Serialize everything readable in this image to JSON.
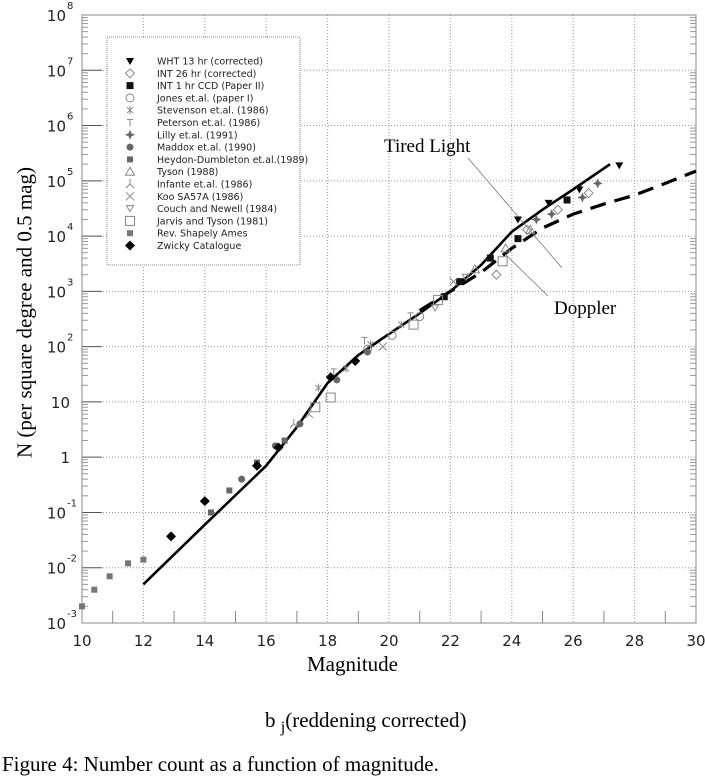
{
  "chart_data": {
    "type": "scatter",
    "title": "",
    "xlabel": "Magnitude",
    "xlabel2_main": "b",
    "xlabel2_sub": "j",
    "xlabel2_rest": "(reddening corrected)",
    "ylabel": "N (per square degree and 0.5 mag)",
    "xlim": [
      10,
      30
    ],
    "ylim": [
      0.001,
      100000000
    ],
    "yscale": "log",
    "grid": true,
    "legend_position": "top-left",
    "x_ticks": [
      "10",
      "12",
      "14",
      "16",
      "18",
      "20",
      "22",
      "24",
      "26",
      "28",
      "30"
    ],
    "y_ticks": [
      {
        "base": "10",
        "exp": "-3"
      },
      {
        "base": "10",
        "exp": "-2"
      },
      {
        "base": "10",
        "exp": "-1"
      },
      {
        "base": "1",
        "exp": ""
      },
      {
        "base": "10",
        "exp": ""
      },
      {
        "base": "10",
        "exp": "2"
      },
      {
        "base": "10",
        "exp": "3"
      },
      {
        "base": "10",
        "exp": "4"
      },
      {
        "base": "10",
        "exp": "5"
      },
      {
        "base": "10",
        "exp": "6"
      },
      {
        "base": "10",
        "exp": "7"
      },
      {
        "base": "10",
        "exp": "8"
      }
    ],
    "curves": [
      {
        "name": "Tired Light",
        "style": "solid",
        "x": [
          12,
          14,
          16,
          17,
          18,
          19,
          20,
          21,
          22,
          23,
          24,
          25,
          26,
          27.2
        ],
        "y": [
          0.005,
          0.06,
          0.7,
          3.5,
          22,
          70,
          170,
          400,
          1000,
          3000,
          12000,
          30000,
          70000,
          200000
        ]
      },
      {
        "name": "Doppler",
        "style": "dashed",
        "x": [
          21,
          22,
          23,
          24,
          25,
          26,
          27,
          28,
          29,
          30
        ],
        "y": [
          450,
          1000,
          2200,
          6000,
          14000,
          25000,
          38000,
          55000,
          90000,
          150000
        ]
      }
    ],
    "series": [
      {
        "name": "WHT 13 hr (corrected)",
        "marker": "tri-down-filled",
        "x": [
          24.2,
          25.2,
          26.2,
          27.5
        ],
        "y": [
          20000,
          40000,
          70000,
          190000
        ]
      },
      {
        "name": "INT 26 hr (corrected)",
        "marker": "diamond-open",
        "x": [
          23.5,
          24.5,
          25.5,
          26.5
        ],
        "y": [
          2000,
          13000,
          30000,
          60000
        ]
      },
      {
        "name": "INT 1 hr CCD (Paper II)",
        "marker": "square-filled",
        "x": [
          21.8,
          22.3,
          23.3,
          24.2,
          25.8
        ],
        "y": [
          800,
          1500,
          4000,
          9000,
          45000
        ]
      },
      {
        "name": "Jones et.al. (paper I)",
        "marker": "circle-open",
        "x": [
          19.3,
          20.1,
          21
        ],
        "y": [
          90,
          160,
          350
        ]
      },
      {
        "name": "Stevenson et.al. (1986)",
        "marker": "asterisk",
        "x": [
          17.7,
          18.6,
          19.4,
          20.4
        ],
        "y": [
          18,
          40,
          110,
          250
        ]
      },
      {
        "name": "Peterson et.al. (1986)",
        "marker": "tee",
        "x": [
          18.2,
          19.2,
          20.7
        ],
        "y": [
          35,
          130,
          360
        ]
      },
      {
        "name": "Lilly et.al. (1991)",
        "marker": "star",
        "x": [
          24.8,
          25.3,
          26.3,
          26.8
        ],
        "y": [
          20000,
          25000,
          50000,
          90000
        ]
      },
      {
        "name": "Maddox et.al. (1990)",
        "marker": "circle-grey",
        "x": [
          15.2,
          16.3,
          17.1,
          18.3,
          18.9,
          19.3
        ],
        "y": [
          0.4,
          1.6,
          4,
          25,
          55,
          80
        ]
      },
      {
        "name": "Heydon-Dumbleton et.al.(1989)",
        "marker": "square-grey",
        "x": [
          14.2,
          14.8,
          15.7,
          16.6
        ],
        "y": [
          0.1,
          0.25,
          0.8,
          2
        ]
      },
      {
        "name": "Tyson (1988)",
        "marker": "triangle-open",
        "x": [
          22.8,
          23.8,
          24.6
        ],
        "y": [
          2500,
          6000,
          13000
        ]
      },
      {
        "name": "Infante et.al. (1986)",
        "marker": "y-shape",
        "x": [
          16.9,
          17.4
        ],
        "y": [
          4,
          6
        ]
      },
      {
        "name": "Koo SA57A (1986)",
        "marker": "cross",
        "x": [
          19.8,
          22.1
        ],
        "y": [
          100,
          1500
        ]
      },
      {
        "name": "Couch and Newell (1984)",
        "marker": "tri-down-open",
        "x": [
          21.5,
          22.5
        ],
        "y": [
          500,
          1800
        ]
      },
      {
        "name": "Jarvis and Tyson (1981)",
        "marker": "square-open",
        "x": [
          17.6,
          18.1,
          20.8,
          21.6,
          23.7
        ],
        "y": [
          8,
          12,
          250,
          700,
          3500
        ]
      },
      {
        "name": "Rev. Shapely Ames",
        "marker": "square-grey-small",
        "x": [
          10,
          10.4,
          10.9,
          11.5,
          12
        ],
        "y": [
          0.002,
          0.004,
          0.007,
          0.012,
          0.014
        ]
      },
      {
        "name": "Zwicky Catalogue",
        "marker": "diamond-filled",
        "x": [
          12.9,
          14,
          15.7,
          16.4,
          18.1,
          18.9
        ],
        "y": [
          0.037,
          0.16,
          0.7,
          1.5,
          28,
          55
        ]
      }
    ],
    "annotations": [
      "Tired Light",
      "Doppler"
    ]
  },
  "caption": "Figure 4: Number count as a function of magnitude."
}
